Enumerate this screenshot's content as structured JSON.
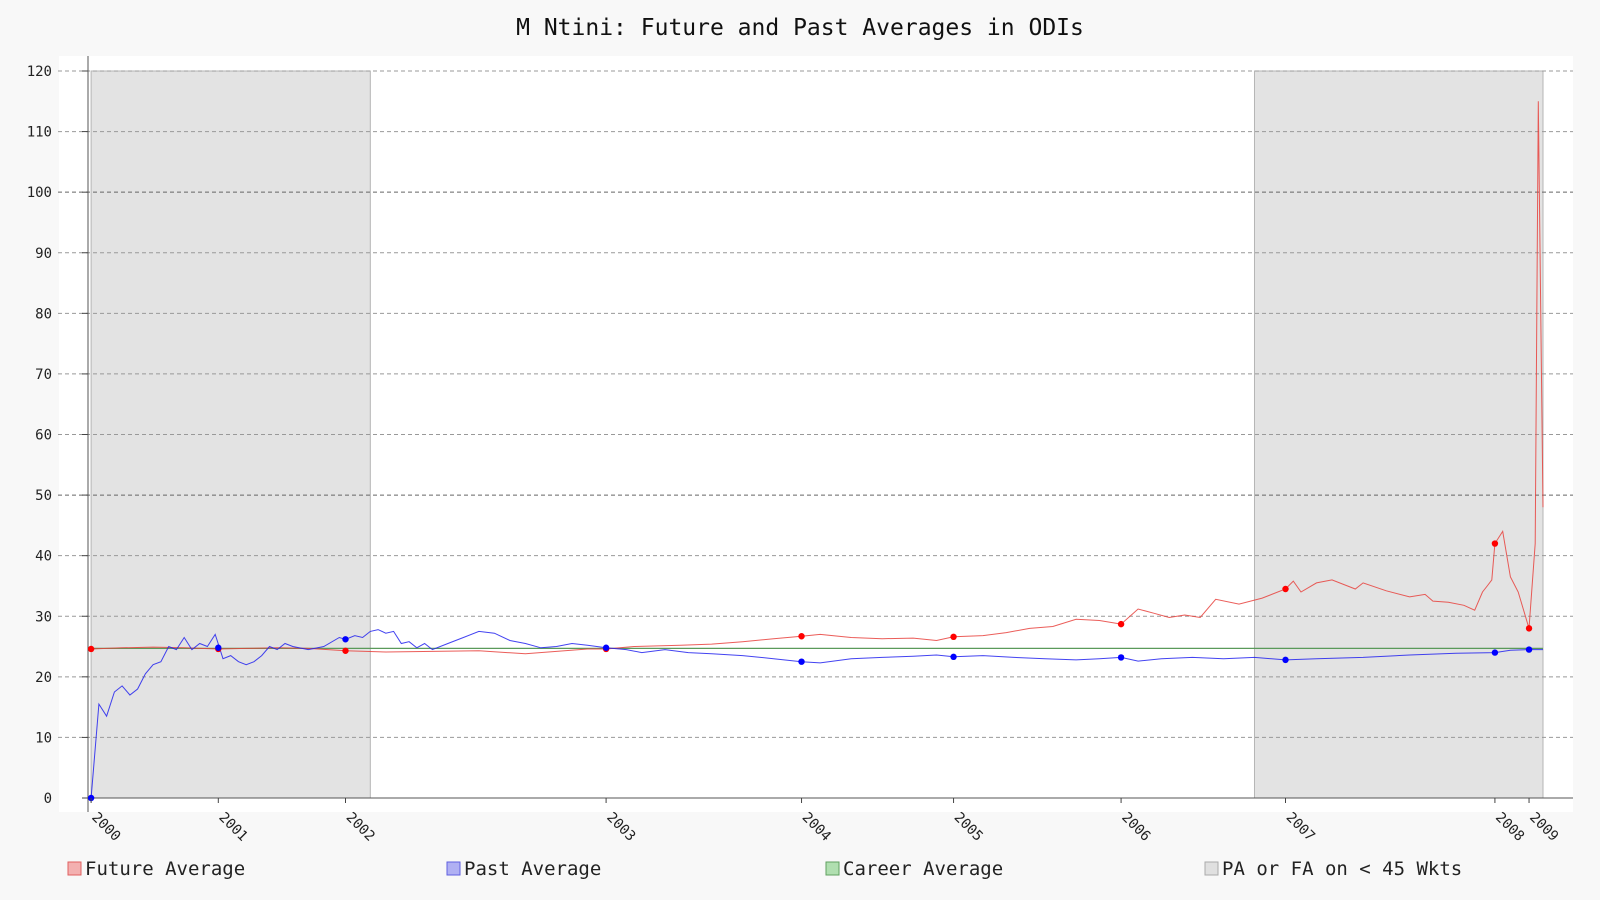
{
  "chart_data": {
    "type": "line",
    "title": "M Ntini: Future and Past Averages in ODIs",
    "xlabel": "",
    "ylabel": "",
    "xlim": [
      1999.98,
      2009.36
    ],
    "ylim": [
      0,
      120
    ],
    "y_ticks": [
      0,
      10,
      20,
      30,
      40,
      50,
      60,
      70,
      80,
      90,
      100,
      110,
      120
    ],
    "x_ticks": [
      {
        "label": "2000",
        "x": 2000.0
      },
      {
        "label": "2001",
        "x": 2000.82
      },
      {
        "label": "2002",
        "x": 2001.64
      },
      {
        "label": "2003",
        "x": 2003.32
      },
      {
        "label": "2004",
        "x": 2004.58
      },
      {
        "label": "2005",
        "x": 2005.56
      },
      {
        "label": "2006",
        "x": 2006.64
      },
      {
        "label": "2007",
        "x": 2007.7
      },
      {
        "label": "2008",
        "x": 2009.05
      },
      {
        "label": "2009",
        "x": 2009.27
      }
    ],
    "grid": true,
    "legend_position": "bottom",
    "shaded_regions": [
      {
        "x0": 2000.0,
        "x1": 2001.8
      },
      {
        "x0": 2007.5,
        "x1": 2009.36
      }
    ],
    "career_average": 24.7,
    "series": [
      {
        "name": "Future Average",
        "color": "#e8413c",
        "points": [
          [
            2000.0,
            24.6
          ],
          [
            2000.2,
            24.8
          ],
          [
            2000.4,
            24.9
          ],
          [
            2000.6,
            24.8
          ],
          [
            2000.82,
            24.6
          ],
          [
            2001.0,
            24.7
          ],
          [
            2001.2,
            24.8
          ],
          [
            2001.4,
            24.7
          ],
          [
            2001.64,
            24.3
          ],
          [
            2001.9,
            24.1
          ],
          [
            2002.2,
            24.2
          ],
          [
            2002.5,
            24.3
          ],
          [
            2002.8,
            23.8
          ],
          [
            2003.0,
            24.2
          ],
          [
            2003.2,
            24.6
          ],
          [
            2003.32,
            24.6
          ],
          [
            2003.5,
            25.0
          ],
          [
            2003.8,
            25.2
          ],
          [
            2004.0,
            25.4
          ],
          [
            2004.2,
            25.8
          ],
          [
            2004.4,
            26.3
          ],
          [
            2004.58,
            26.7
          ],
          [
            2004.7,
            27.0
          ],
          [
            2004.9,
            26.5
          ],
          [
            2005.1,
            26.3
          ],
          [
            2005.3,
            26.4
          ],
          [
            2005.45,
            26.0
          ],
          [
            2005.56,
            26.6
          ],
          [
            2005.75,
            26.8
          ],
          [
            2005.9,
            27.3
          ],
          [
            2006.05,
            28.0
          ],
          [
            2006.2,
            28.3
          ],
          [
            2006.35,
            29.5
          ],
          [
            2006.5,
            29.3
          ],
          [
            2006.64,
            28.7
          ],
          [
            2006.75,
            31.2
          ],
          [
            2006.85,
            30.5
          ],
          [
            2006.95,
            29.8
          ],
          [
            2007.05,
            30.2
          ],
          [
            2007.15,
            29.8
          ],
          [
            2007.25,
            32.8
          ],
          [
            2007.4,
            32.0
          ],
          [
            2007.55,
            33.0
          ],
          [
            2007.7,
            34.5
          ],
          [
            2007.75,
            35.8
          ],
          [
            2007.8,
            34.0
          ],
          [
            2007.9,
            35.5
          ],
          [
            2008.0,
            36.0
          ],
          [
            2008.15,
            34.5
          ],
          [
            2008.2,
            35.5
          ],
          [
            2008.35,
            34.2
          ],
          [
            2008.5,
            33.2
          ],
          [
            2008.6,
            33.6
          ],
          [
            2008.65,
            32.5
          ],
          [
            2008.75,
            32.3
          ],
          [
            2008.85,
            31.8
          ],
          [
            2008.92,
            31.0
          ],
          [
            2008.97,
            34.0
          ],
          [
            2009.0,
            35.0
          ],
          [
            2009.03,
            36.0
          ],
          [
            2009.05,
            42.0
          ],
          [
            2009.1,
            44.0
          ],
          [
            2009.15,
            36.5
          ],
          [
            2009.2,
            34.0
          ],
          [
            2009.27,
            28.0
          ],
          [
            2009.31,
            42.0
          ],
          [
            2009.33,
            115.0
          ],
          [
            2009.36,
            48.0
          ]
        ],
        "markers": [
          [
            2000.0,
            24.6
          ],
          [
            2000.82,
            24.6
          ],
          [
            2001.64,
            24.3
          ],
          [
            2003.32,
            24.6
          ],
          [
            2004.58,
            26.7
          ],
          [
            2005.56,
            26.6
          ],
          [
            2006.64,
            28.7
          ],
          [
            2007.7,
            34.5
          ],
          [
            2009.05,
            42.0
          ],
          [
            2009.27,
            28.0
          ]
        ]
      },
      {
        "name": "Past Average",
        "color": "#2222ee",
        "points": [
          [
            2000.0,
            0.0
          ],
          [
            2000.05,
            15.5
          ],
          [
            2000.1,
            13.5
          ],
          [
            2000.15,
            17.5
          ],
          [
            2000.2,
            18.5
          ],
          [
            2000.25,
            17.0
          ],
          [
            2000.3,
            18.0
          ],
          [
            2000.35,
            20.5
          ],
          [
            2000.4,
            22.0
          ],
          [
            2000.45,
            22.5
          ],
          [
            2000.5,
            25.0
          ],
          [
            2000.55,
            24.5
          ],
          [
            2000.6,
            26.5
          ],
          [
            2000.65,
            24.5
          ],
          [
            2000.7,
            25.5
          ],
          [
            2000.75,
            25.0
          ],
          [
            2000.8,
            27.0
          ],
          [
            2000.85,
            23.0
          ],
          [
            2000.9,
            23.5
          ],
          [
            2000.95,
            22.5
          ],
          [
            2001.0,
            22.0
          ],
          [
            2001.05,
            22.5
          ],
          [
            2001.1,
            23.5
          ],
          [
            2001.15,
            25.0
          ],
          [
            2001.2,
            24.5
          ],
          [
            2001.25,
            25.5
          ],
          [
            2001.3,
            25.0
          ],
          [
            2001.4,
            24.5
          ],
          [
            2001.5,
            25.0
          ],
          [
            2001.6,
            26.5
          ],
          [
            2001.64,
            26.2
          ],
          [
            2001.7,
            26.8
          ],
          [
            2001.75,
            26.5
          ],
          [
            2001.8,
            27.5
          ],
          [
            2001.85,
            27.8
          ],
          [
            2001.9,
            27.2
          ],
          [
            2001.95,
            27.5
          ],
          [
            2002.0,
            25.5
          ],
          [
            2002.05,
            25.8
          ],
          [
            2002.1,
            24.8
          ],
          [
            2002.15,
            25.5
          ],
          [
            2002.2,
            24.5
          ],
          [
            2002.3,
            25.5
          ],
          [
            2002.4,
            26.5
          ],
          [
            2002.5,
            27.5
          ],
          [
            2002.6,
            27.2
          ],
          [
            2002.7,
            26.0
          ],
          [
            2002.8,
            25.5
          ],
          [
            2002.9,
            24.8
          ],
          [
            2003.0,
            25.0
          ],
          [
            2003.1,
            25.5
          ],
          [
            2003.2,
            25.2
          ],
          [
            2003.32,
            24.8
          ],
          [
            2003.45,
            24.5
          ],
          [
            2003.55,
            24.0
          ],
          [
            2003.7,
            24.5
          ],
          [
            2003.85,
            24.0
          ],
          [
            2004.0,
            23.8
          ],
          [
            2004.2,
            23.5
          ],
          [
            2004.4,
            23.0
          ],
          [
            2004.58,
            22.5
          ],
          [
            2004.7,
            22.3
          ],
          [
            2004.9,
            23.0
          ],
          [
            2005.1,
            23.2
          ],
          [
            2005.3,
            23.4
          ],
          [
            2005.45,
            23.6
          ],
          [
            2005.56,
            23.3
          ],
          [
            2005.75,
            23.5
          ],
          [
            2005.95,
            23.2
          ],
          [
            2006.15,
            23.0
          ],
          [
            2006.35,
            22.8
          ],
          [
            2006.5,
            23.0
          ],
          [
            2006.64,
            23.2
          ],
          [
            2006.75,
            22.6
          ],
          [
            2006.9,
            23.0
          ],
          [
            2007.1,
            23.2
          ],
          [
            2007.3,
            23.0
          ],
          [
            2007.5,
            23.2
          ],
          [
            2007.7,
            22.8
          ],
          [
            2007.9,
            23.0
          ],
          [
            2008.2,
            23.2
          ],
          [
            2008.5,
            23.6
          ],
          [
            2008.8,
            23.9
          ],
          [
            2009.05,
            24.0
          ],
          [
            2009.15,
            24.4
          ],
          [
            2009.27,
            24.5
          ],
          [
            2009.36,
            24.5
          ]
        ],
        "markers": [
          [
            2000.0,
            0.0
          ],
          [
            2000.82,
            24.8
          ],
          [
            2001.64,
            26.2
          ],
          [
            2003.32,
            24.8
          ],
          [
            2004.58,
            22.5
          ],
          [
            2005.56,
            23.3
          ],
          [
            2006.64,
            23.2
          ],
          [
            2007.7,
            22.8
          ],
          [
            2009.05,
            24.0
          ],
          [
            2009.27,
            24.5
          ]
        ]
      }
    ],
    "legend": [
      {
        "label": "Future Average",
        "fill": "#f3b0b0",
        "stroke": "#e06060"
      },
      {
        "label": "Past Average",
        "fill": "#b0b0f3",
        "stroke": "#6060e0"
      },
      {
        "label": "Career Average",
        "fill": "#b0dfb0",
        "stroke": "#60a060"
      },
      {
        "label": "PA or FA on < 45 Wkts",
        "fill": "#e0e0e0",
        "stroke": "#aaaaaa"
      }
    ]
  }
}
